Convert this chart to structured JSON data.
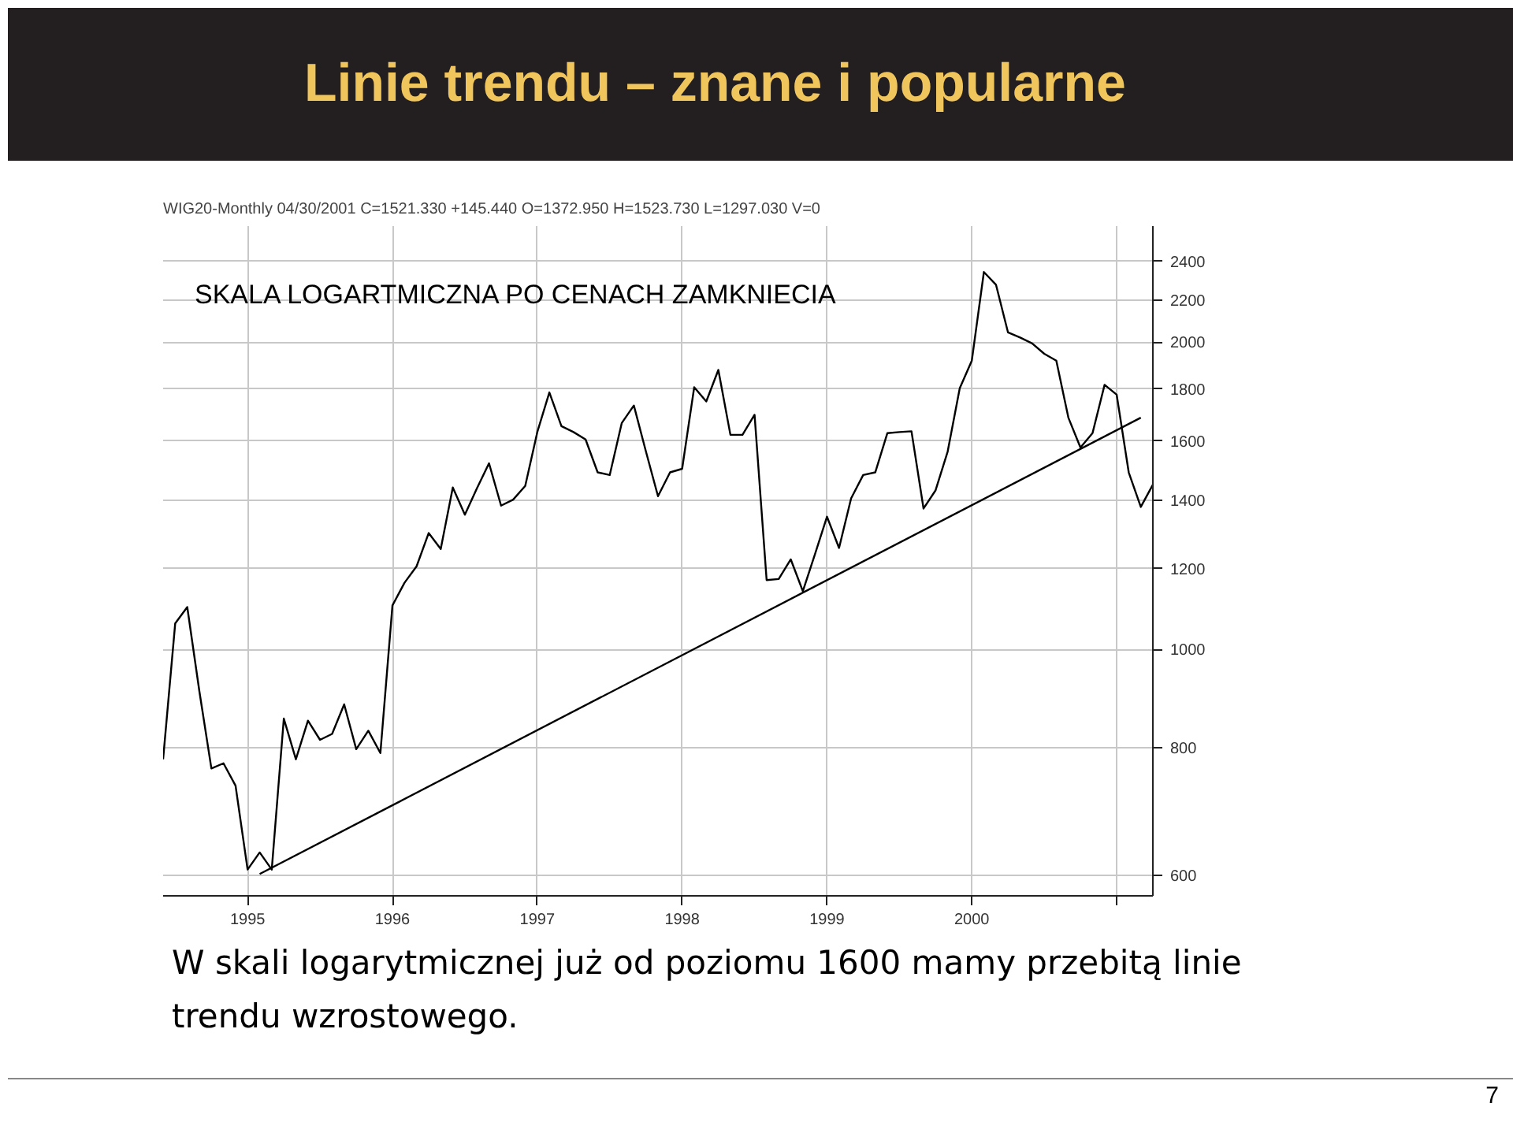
{
  "chart_data": {
    "type": "line",
    "title": "Linie trendu – znane i popularne",
    "subtitle": "SKALA LOGARTMICZNA PO CENACH ZAMKNIECIA",
    "annotations": [
      "WIG20-Monthly   04/30/2001   C=1521.330   +145.440   O=1372.950   H=1523.730   L=1297.030   V=0",
      "W skali logarytmicznej już od poziomu 1600 mamy przebitą linie trendu wzrostowego.",
      "7"
    ],
    "log": "y",
    "grid": true,
    "xlim": [
      "1994-06",
      "2001-04"
    ],
    "xticks": [
      {
        "value": "1995-01",
        "label": "1995"
      },
      {
        "value": "1996-01",
        "label": "1996"
      },
      {
        "value": "1997-01",
        "label": "1997"
      },
      {
        "value": "1998-01",
        "label": "1998"
      },
      {
        "value": "1999-01",
        "label": "1999"
      },
      {
        "value": "2000-01",
        "label": "2000"
      },
      {
        "value": "2001-01",
        "label": null
      }
    ],
    "ylim": [
      573,
      2600
    ],
    "yticks": [
      600,
      800,
      1000,
      1200,
      1400,
      1600,
      1800,
      2000,
      2200,
      2400
    ],
    "series": [
      {
        "color": "#000000",
        "x": [
          "1994-06",
          "1994-07",
          "1994-08",
          "1994-09",
          "1994-10",
          "1994-11",
          "1994-12",
          "1995-01",
          "1995-02",
          "1995-03",
          "1995-04",
          "1995-05",
          "1995-06",
          "1995-07",
          "1995-08",
          "1995-09",
          "1995-10",
          "1995-11",
          "1995-12",
          "1996-01",
          "1996-02",
          "1996-03",
          "1996-04",
          "1996-05",
          "1996-06",
          "1996-07",
          "1996-08",
          "1996-09",
          "1996-10",
          "1996-11",
          "1996-12",
          "1997-01",
          "1997-02",
          "1997-03",
          "1997-04",
          "1997-05",
          "1997-06",
          "1997-07",
          "1997-08",
          "1997-09",
          "1997-10",
          "1997-11",
          "1997-12",
          "1998-01",
          "1998-02",
          "1998-03",
          "1998-04",
          "1998-05",
          "1998-06",
          "1998-07",
          "1998-08",
          "1998-09",
          "1998-10",
          "1998-11",
          "1998-12",
          "1999-01",
          "1999-02",
          "1999-03",
          "1999-04",
          "1999-05",
          "1999-06",
          "1999-07",
          "1999-08",
          "1999-09",
          "1999-10",
          "1999-11",
          "1999-12",
          "2000-01",
          "2000-02",
          "2000-03",
          "2000-04",
          "2000-05",
          "2000-06",
          "2000-07",
          "2000-08",
          "2000-09",
          "2000-10",
          "2000-11",
          "2000-12",
          "2001-01",
          "2001-02",
          "2001-03",
          "2001-04"
        ],
        "values": [
          780,
          1060,
          1100,
          910,
          764,
          773,
          735,
          608,
          632,
          608,
          855,
          780,
          851,
          815,
          826,
          883,
          798,
          832,
          791,
          1104,
          1162,
          1206,
          1300,
          1254,
          1441,
          1355,
          1438,
          1522,
          1383,
          1402,
          1446,
          1633,
          1786,
          1655,
          1633,
          1606,
          1491,
          1482,
          1667,
          1734,
          1563,
          1413,
          1491,
          1503,
          1807,
          1750,
          1879,
          1623,
          1623,
          1698,
          1169,
          1172,
          1225,
          1140,
          1239,
          1349,
          1257,
          1406,
          1482,
          1491,
          1629,
          1633,
          1636,
          1374,
          1432,
          1563,
          1803,
          1919,
          2344,
          2278,
          2045,
          2022,
          1995,
          1949,
          1919,
          1687,
          1577,
          1629,
          1817,
          1777,
          1491,
          1379,
          1450
        ]
      },
      {
        "color": "#000000",
        "x": [
          "1995-02",
          "2001-03"
        ],
        "values": [
          602,
          1687
        ]
      }
    ]
  }
}
